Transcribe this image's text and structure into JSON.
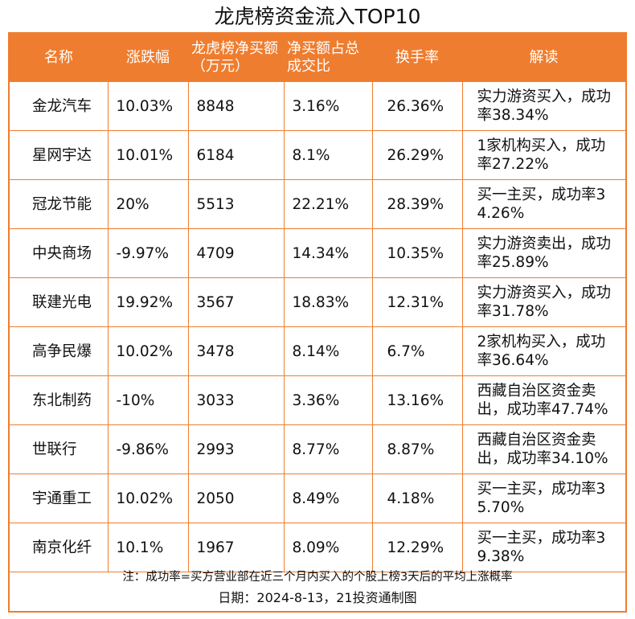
{
  "title": "龙虎榜资金流入TOP10",
  "headers": {
    "name": "名称",
    "change": "涨跌幅",
    "net_buy": "龙虎榜净买额（万元）",
    "net_ratio": "净买额占总成交比",
    "turnover": "换手率",
    "reading": "解读"
  },
  "rows": [
    {
      "name": "金龙汽车",
      "change": "10.03%",
      "net_buy": "8848",
      "net_ratio": "3.16%",
      "turnover": "26.36%",
      "reading": "实力游资买入，成功率38.34%"
    },
    {
      "name": "星网宇达",
      "change": "10.01%",
      "net_buy": "6184",
      "net_ratio": "8.1%",
      "turnover": "26.29%",
      "reading": "1家机构买入，成功率27.22%"
    },
    {
      "name": "冠龙节能",
      "change": "20%",
      "net_buy": "5513",
      "net_ratio": "22.21%",
      "turnover": "28.39%",
      "reading": "买一主买，成功率34.26%"
    },
    {
      "name": "中央商场",
      "change": "-9.97%",
      "net_buy": "4709",
      "net_ratio": "14.34%",
      "turnover": "10.35%",
      "reading": "实力游资卖出，成功率25.89%"
    },
    {
      "name": "联建光电",
      "change": "19.92%",
      "net_buy": "3567",
      "net_ratio": "18.83%",
      "turnover": "12.31%",
      "reading": "实力游资买入，成功率31.78%"
    },
    {
      "name": "高争民爆",
      "change": "10.02%",
      "net_buy": "3478",
      "net_ratio": "8.14%",
      "turnover": "6.7%",
      "reading": "2家机构买入，成功率36.64%"
    },
    {
      "name": "东北制药",
      "change": "-10%",
      "net_buy": "3033",
      "net_ratio": "3.36%",
      "turnover": "13.16%",
      "reading": "西藏自治区资金卖出，成功率47.74%"
    },
    {
      "name": "世联行",
      "change": "-9.86%",
      "net_buy": "2993",
      "net_ratio": "8.77%",
      "turnover": "8.87%",
      "reading": "西藏自治区资金卖出，成功率34.10%"
    },
    {
      "name": "宇通重工",
      "change": "10.02%",
      "net_buy": "2050",
      "net_ratio": "8.49%",
      "turnover": "4.18%",
      "reading": "买一主买，成功率35.70%"
    },
    {
      "name": "南京化纤",
      "change": "10.1%",
      "net_buy": "1967",
      "net_ratio": "8.09%",
      "turnover": "12.29%",
      "reading": "买一主买，成功率39.38%"
    }
  ],
  "note": "注：成功率=买方营业部在近三个月内买入的个股上榜3天后的平均上涨概率",
  "date_line": "日期：2024-8-13，21投资通制图",
  "colors": {
    "accent": "#ef7d2f",
    "header_text": "#ffffff"
  }
}
